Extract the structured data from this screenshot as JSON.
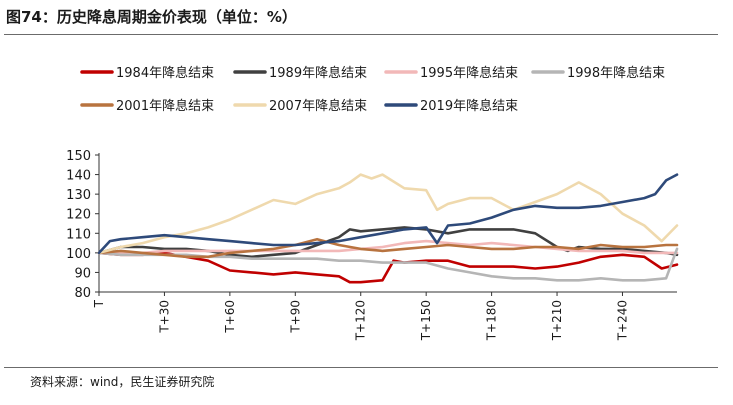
{
  "header": {
    "title": "图74：历史降息周期金价表现（单位：%）"
  },
  "footer": {
    "source": "资料来源：wind，民生证券研究院"
  },
  "chart_data": {
    "type": "line",
    "title": "图74：历史降息周期金价表现（单位：%）",
    "ylim": [
      80,
      150
    ],
    "yticks": [
      150,
      140,
      130,
      120,
      110,
      100,
      90,
      80
    ],
    "x_range": [
      0,
      265
    ],
    "xticks": [
      {
        "label": "T",
        "value": 0
      },
      {
        "label": "T+30",
        "value": 30
      },
      {
        "label": "T+60",
        "value": 60
      },
      {
        "label": "T+90",
        "value": 90
      },
      {
        "label": "T+120",
        "value": 120
      },
      {
        "label": "T+150",
        "value": 150
      },
      {
        "label": "T+180",
        "value": 180
      },
      {
        "label": "T+210",
        "value": 210
      },
      {
        "label": "T+240",
        "value": 240
      }
    ],
    "series": [
      {
        "name": "1984年降息结束",
        "color": "#c00000",
        "x": [
          0,
          10,
          20,
          30,
          40,
          50,
          60,
          70,
          80,
          90,
          100,
          110,
          115,
          120,
          130,
          135,
          140,
          150,
          160,
          170,
          180,
          190,
          200,
          210,
          220,
          230,
          240,
          250,
          258,
          265
        ],
        "y": [
          100,
          99,
          99,
          100,
          98,
          96,
          91,
          90,
          89,
          90,
          89,
          88,
          85,
          85,
          86,
          96,
          95,
          96,
          96,
          93,
          93,
          93,
          92,
          93,
          95,
          98,
          99,
          98,
          92,
          94
        ]
      },
      {
        "name": "1989年降息结束",
        "color": "#404040",
        "x": [
          0,
          10,
          20,
          30,
          40,
          50,
          60,
          70,
          80,
          90,
          100,
          110,
          115,
          120,
          130,
          140,
          150,
          160,
          170,
          180,
          190,
          200,
          210,
          215,
          220,
          230,
          240,
          250,
          260,
          265
        ],
        "y": [
          100,
          103,
          103,
          102,
          102,
          101,
          99,
          98,
          99,
          100,
          104,
          108,
          112,
          111,
          112,
          113,
          112,
          110,
          112,
          112,
          112,
          110,
          103,
          101,
          103,
          102,
          102,
          101,
          100,
          99
        ]
      },
      {
        "name": "1995年降息结束",
        "color": "#f2b8b8",
        "x": [
          0,
          10,
          20,
          30,
          40,
          50,
          60,
          70,
          80,
          90,
          100,
          110,
          120,
          130,
          140,
          150,
          160,
          170,
          180,
          190,
          200,
          210,
          220,
          230,
          240,
          250,
          265
        ],
        "y": [
          100,
          100,
          100,
          101,
          101,
          101,
          101,
          101,
          101,
          101,
          101,
          101,
          102,
          103,
          105,
          106,
          105,
          104,
          105,
          104,
          103,
          102,
          101,
          101,
          101,
          100,
          100
        ]
      },
      {
        "name": "1998年降息结束",
        "color": "#b5b5b5",
        "x": [
          0,
          10,
          20,
          30,
          40,
          50,
          60,
          70,
          80,
          90,
          100,
          110,
          120,
          130,
          140,
          150,
          160,
          170,
          180,
          190,
          200,
          210,
          220,
          230,
          240,
          250,
          260,
          265
        ],
        "y": [
          100,
          99,
          99,
          99,
          99,
          98,
          98,
          97,
          97,
          97,
          97,
          96,
          96,
          95,
          95,
          95,
          92,
          90,
          88,
          87,
          87,
          86,
          86,
          87,
          86,
          86,
          87,
          102
        ]
      },
      {
        "name": "2001年降息结束",
        "color": "#b8733f",
        "x": [
          0,
          10,
          20,
          30,
          40,
          50,
          60,
          70,
          80,
          90,
          100,
          110,
          120,
          130,
          140,
          150,
          160,
          170,
          180,
          190,
          200,
          210,
          220,
          230,
          240,
          250,
          260,
          265
        ],
        "y": [
          100,
          101,
          100,
          99,
          98,
          98,
          100,
          101,
          102,
          104,
          107,
          104,
          102,
          101,
          102,
          103,
          104,
          103,
          102,
          102,
          103,
          103,
          102,
          104,
          103,
          103,
          104,
          104
        ]
      },
      {
        "name": "2007年降息结束",
        "color": "#efd9ad",
        "x": [
          0,
          10,
          20,
          30,
          40,
          50,
          60,
          70,
          80,
          90,
          100,
          110,
          115,
          120,
          125,
          130,
          140,
          150,
          155,
          160,
          170,
          180,
          190,
          200,
          210,
          220,
          230,
          240,
          250,
          258,
          265
        ],
        "y": [
          100,
          103,
          105,
          108,
          110,
          113,
          117,
          122,
          127,
          125,
          130,
          133,
          136,
          140,
          138,
          140,
          133,
          132,
          122,
          125,
          128,
          128,
          122,
          126,
          130,
          136,
          130,
          120,
          114,
          106,
          114
        ]
      },
      {
        "name": "2019年降息结束",
        "color": "#2e4a7a",
        "x": [
          0,
          5,
          10,
          20,
          30,
          40,
          50,
          60,
          70,
          80,
          90,
          100,
          110,
          120,
          130,
          140,
          150,
          155,
          160,
          170,
          180,
          190,
          200,
          210,
          220,
          230,
          240,
          250,
          255,
          260,
          265
        ],
        "y": [
          100,
          106,
          107,
          108,
          109,
          108,
          107,
          106,
          105,
          104,
          104,
          105,
          106,
          108,
          110,
          112,
          113,
          105,
          114,
          115,
          118,
          122,
          124,
          123,
          123,
          124,
          126,
          128,
          130,
          137,
          140
        ]
      }
    ]
  }
}
